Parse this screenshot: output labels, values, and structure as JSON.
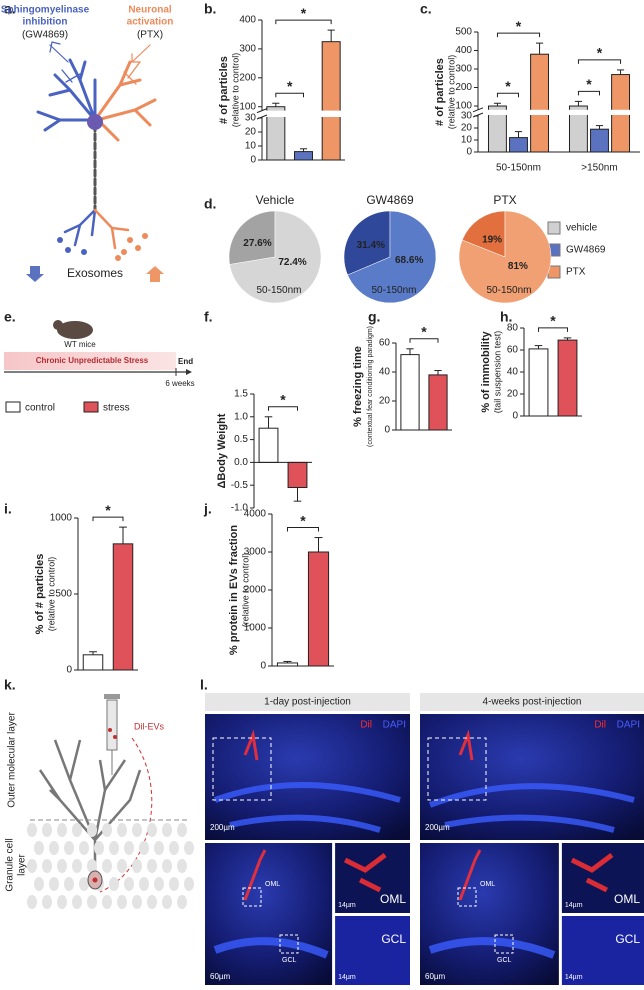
{
  "panel_a": {
    "label": "a.",
    "inhibition_text": [
      "Sphingomyelinase",
      "inhibition",
      "(GW4869)"
    ],
    "activation_text": [
      "Neuronal",
      "activation",
      "(PTX)"
    ],
    "exosomes": "Exosomes"
  },
  "panel_e": {
    "label": "e.",
    "mouse": "WT mice",
    "stress_bar": "Chronic Unpredictable Stress",
    "end": "End",
    "duration": "6 weeks",
    "legend": [
      {
        "name": "control",
        "color": "#ffffff"
      },
      {
        "name": "stress",
        "color": "#e0525a"
      }
    ]
  },
  "panel_k": {
    "label": "k.",
    "evs": "Dil-EVs",
    "outer_layer": "Outer molecular layer",
    "granule_layer": [
      "Granule cell",
      "layer"
    ]
  },
  "panel_l": {
    "label": "l.",
    "columns": [
      {
        "title": "1-day post-injection",
        "stain": [
          "Dil",
          "DAPI"
        ],
        "scales": [
          "200µm",
          "60µm",
          "14µm",
          "14µm"
        ],
        "regions": [
          "OML",
          "GCL"
        ],
        "insets": [
          "OML",
          "GCL"
        ]
      },
      {
        "title": "4-weeks post-injection",
        "stain": [
          "Dil",
          "DAPI"
        ],
        "scales": [
          "200µm",
          "60µm",
          "14µm",
          "14µm"
        ],
        "regions": [
          "OML",
          "GCL"
        ],
        "insets": [
          "OML",
          "GCL"
        ]
      }
    ]
  },
  "chart_data": [
    {
      "type": "bar",
      "label": "b.",
      "ylabel": "# of particles",
      "ylabel_sub": "(relative to control)",
      "values": [
        100,
        6,
        325
      ],
      "errors": [
        12,
        2,
        40
      ],
      "colors": [
        "#d0d0d0",
        "#5a72c0",
        "#ee9666"
      ],
      "ylim": [
        0,
        400
      ],
      "ybreak": [
        30,
        90
      ],
      "yticks": [
        0,
        10,
        20,
        30,
        100,
        200,
        300,
        400
      ],
      "significance": [
        {
          "text": "*",
          "between": [
            0,
            1
          ]
        },
        {
          "text": "*",
          "between": [
            0,
            2
          ]
        }
      ]
    },
    {
      "type": "bar",
      "label": "c.",
      "ylabel": "# of particles",
      "ylabel_sub": "(relative to control)",
      "categories": [
        "50-150nm",
        ">150nm"
      ],
      "series": [
        {
          "name": "vehicle",
          "color": "#d0d0d0",
          "values": [
            100,
            100
          ],
          "errors": [
            15,
            25
          ]
        },
        {
          "name": "GW4869",
          "color": "#5a72c0",
          "values": [
            12,
            19
          ],
          "errors": [
            5,
            3
          ]
        },
        {
          "name": "PTX",
          "color": "#ee9666",
          "values": [
            380,
            270
          ],
          "errors": [
            60,
            25
          ]
        }
      ],
      "ylim": [
        0,
        500
      ],
      "ybreak": [
        30,
        85
      ],
      "yticks": [
        0,
        10,
        20,
        30,
        100,
        200,
        300,
        400,
        500
      ],
      "significance": [
        {
          "text": "*",
          "category": 0,
          "between": [
            0,
            1
          ]
        },
        {
          "text": "*",
          "category": 0,
          "between": [
            0,
            2
          ]
        },
        {
          "text": "*",
          "category": 1,
          "between": [
            0,
            1
          ]
        },
        {
          "text": "*",
          "category": 1,
          "between": [
            0,
            2
          ]
        }
      ]
    },
    {
      "type": "pie",
      "label": "d.",
      "title": "Vehicle",
      "values": [
        27.6,
        72.4
      ],
      "value_labels": [
        "27.6%",
        "72.4%"
      ],
      "colors": [
        "#a3a3a3",
        "#d6d6d6"
      ],
      "note": "50-150nm"
    },
    {
      "type": "pie",
      "title": "GW4869",
      "values": [
        31.4,
        68.6
      ],
      "value_labels": [
        "31.4%",
        "68.6%"
      ],
      "colors": [
        "#30489a",
        "#5a7bc8"
      ],
      "note": "50-150nm"
    },
    {
      "type": "pie",
      "title": "PTX",
      "values": [
        19,
        81
      ],
      "value_labels": [
        "19%",
        "81%"
      ],
      "colors": [
        "#e2703e",
        "#f0a073"
      ],
      "note": "50-150nm"
    },
    {
      "type": "bar",
      "label": "f.",
      "ylabel": "ΔBody Weight",
      "values": [
        0.75,
        -0.55
      ],
      "errors": [
        0.25,
        0.3
      ],
      "colors": [
        "#ffffff",
        "#e0525a"
      ],
      "ylim": [
        -1,
        1.5
      ],
      "yticks": [
        {
          "value": -1,
          "label": "-1.0"
        },
        -0.5,
        {
          "value": 0,
          "label": "0.0"
        },
        0.5,
        {
          "value": 1,
          "label": "1.0"
        },
        1.5
      ],
      "significance": [
        {
          "text": "*",
          "between": [
            0,
            1
          ]
        }
      ]
    },
    {
      "type": "bar",
      "label": "g.",
      "ylabel": "% freezing time",
      "ylabel_sub": "(contextual fear conditioning paradigm)",
      "values": [
        52,
        38
      ],
      "errors": [
        4,
        3
      ],
      "colors": [
        "#ffffff",
        "#e0525a"
      ],
      "ylim": [
        0,
        60
      ],
      "yticks": [
        0,
        20,
        40,
        60
      ],
      "significance": [
        {
          "text": "*",
          "between": [
            0,
            1
          ]
        }
      ]
    },
    {
      "type": "bar",
      "label": "h.",
      "ylabel": "% of immobility",
      "ylabel_sub": "(tail suspension test)",
      "values": [
        61,
        69
      ],
      "errors": [
        3,
        2
      ],
      "colors": [
        "#ffffff",
        "#e0525a"
      ],
      "ylim": [
        0,
        80
      ],
      "yticks": [
        0,
        20,
        40,
        60,
        80
      ],
      "significance": [
        {
          "text": "*",
          "between": [
            0,
            1
          ]
        }
      ]
    },
    {
      "type": "bar",
      "label": "i.",
      "ylabel": "% of # particles",
      "ylabel_sub": "(relative to control)",
      "values": [
        100,
        830
      ],
      "errors": [
        20,
        110
      ],
      "colors": [
        "#ffffff",
        "#e0525a"
      ],
      "ylim": [
        0,
        1000
      ],
      "yticks": [
        0,
        500,
        1000
      ],
      "significance": [
        {
          "text": "*",
          "between": [
            0,
            1
          ]
        }
      ]
    },
    {
      "type": "bar",
      "label": "j.",
      "ylabel": "% protein in EVs fraction",
      "ylabel_sub": "(relative to control)",
      "values": [
        80,
        3000
      ],
      "errors": [
        40,
        380
      ],
      "colors": [
        "#ffffff",
        "#e0525a"
      ],
      "ylim": [
        0,
        4000
      ],
      "yticks": [
        0,
        1000,
        2000,
        3000,
        4000
      ],
      "significance": [
        {
          "text": "*",
          "between": [
            0,
            1
          ]
        }
      ]
    }
  ]
}
